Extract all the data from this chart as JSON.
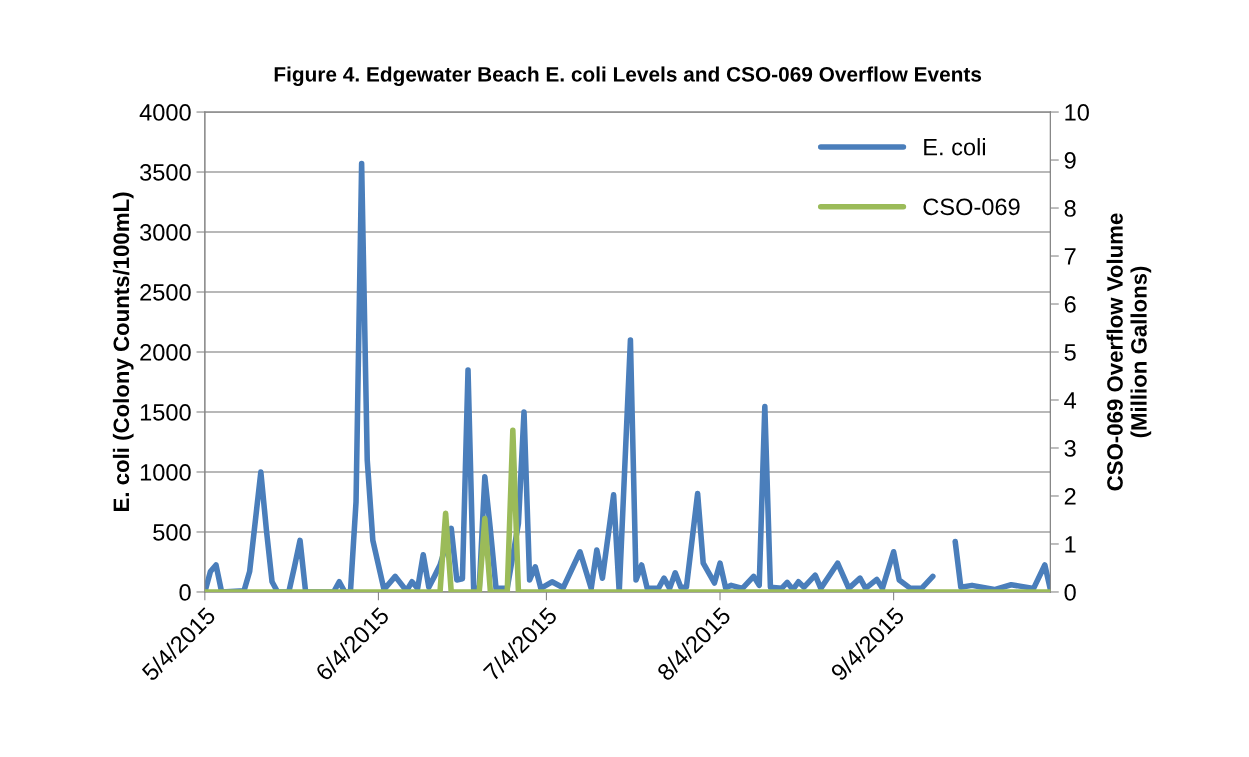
{
  "chart_data": {
    "type": "line",
    "title": "Figure 4. Edgewater Beach E. coli Levels and CSO-069 Overflow Events",
    "ylabel": "E. coli (Colony Counts/100mL)",
    "y2label": "CSO-069 Overflow Volume\n(Million Gallons)",
    "xlim": [
      "2015-05-04",
      "2015-10-02"
    ],
    "xticks": [
      {
        "value": "2015-05-04",
        "label": "5/4/2015"
      },
      {
        "value": "2015-06-04",
        "label": "6/4/2015"
      },
      {
        "value": "2015-07-04",
        "label": "7/4/2015"
      },
      {
        "value": "2015-08-04",
        "label": "8/4/2015"
      },
      {
        "value": "2015-09-04",
        "label": "9/4/2015"
      }
    ],
    "ylim": [
      0,
      4000
    ],
    "yticks": [
      0,
      500,
      1000,
      1500,
      2000,
      2500,
      3000,
      3500,
      4000
    ],
    "y2lim": [
      0,
      10
    ],
    "y2ticks": [
      0,
      1,
      2,
      3,
      4,
      5,
      6,
      7,
      8,
      9,
      10
    ],
    "grid": "y",
    "legend": "top right",
    "marker": "none",
    "line_style": "solid",
    "series": [
      {
        "name": "E. coli",
        "color": "#4a7ebb",
        "x": [
          "2015-05-04",
          "2015-05-05",
          "2015-05-06",
          "2015-05-07",
          "2015-05-11",
          "2015-05-12",
          "2015-05-14",
          "2015-05-15",
          "2015-05-16",
          "2015-05-17",
          "2015-05-19",
          "2015-05-20",
          "2015-05-21",
          "2015-05-22",
          "2015-05-25",
          "2015-05-27",
          "2015-05-28",
          "2015-05-29",
          "2015-05-30",
          "2015-05-31",
          "2015-06-01",
          "2015-06-02",
          "2015-06-03",
          "2015-06-05",
          "2015-06-07",
          "2015-06-09",
          "2015-06-10",
          "2015-06-11",
          "2015-06-12",
          "2015-06-13",
          "2015-06-14",
          "2015-06-15",
          "2015-06-17",
          "2015-06-18",
          "2015-06-19",
          "2015-06-20",
          "2015-06-21",
          "2015-06-22",
          "2015-06-23",
          "2015-06-24",
          "2015-06-25",
          "2015-06-27",
          "2015-06-29",
          "2015-06-30",
          "2015-07-01",
          "2015-07-02",
          "2015-07-03",
          "2015-07-05",
          "2015-07-07",
          "2015-07-10",
          "2015-07-12",
          "2015-07-13",
          "2015-07-14",
          "2015-07-16",
          "2015-07-17",
          "2015-07-19",
          "2015-07-20",
          "2015-07-21",
          "2015-07-22",
          "2015-07-24",
          "2015-07-25",
          "2015-07-26",
          "2015-07-27",
          "2015-07-28",
          "2015-07-29",
          "2015-07-31",
          "2015-08-01",
          "2015-08-03",
          "2015-08-04",
          "2015-08-05",
          "2015-08-06",
          "2015-08-08",
          "2015-08-10",
          "2015-08-11",
          "2015-08-12",
          "2015-08-13",
          "2015-08-15",
          "2015-08-16",
          "2015-08-17",
          "2015-08-18",
          "2015-08-19",
          "2015-08-21",
          "2015-08-22",
          "2015-08-25",
          "2015-08-27",
          "2015-08-29",
          "2015-08-30",
          "2015-09-01",
          "2015-09-02",
          "2015-09-04",
          "2015-09-05",
          "2015-09-07",
          "2015-09-09",
          "2015-09-11",
          "2015-09-13",
          "2015-09-15",
          "2015-09-16",
          "2015-09-18",
          "2015-09-22",
          "2015-09-25",
          "2015-09-29",
          "2015-10-01",
          "2015-10-02"
        ],
        "values": [
          0,
          170,
          225,
          0,
          10,
          170,
          1000,
          515,
          85,
          0,
          0,
          210,
          430,
          0,
          0,
          0,
          85,
          0,
          0,
          750,
          3570,
          1100,
          430,
          20,
          130,
          10,
          85,
          30,
          310,
          40,
          130,
          225,
          530,
          100,
          110,
          1850,
          30,
          30,
          960,
          515,
          30,
          30,
          570,
          1500,
          100,
          210,
          30,
          85,
          35,
          335,
          30,
          350,
          115,
          810,
          0,
          2100,
          100,
          225,
          30,
          30,
          115,
          30,
          160,
          40,
          40,
          820,
          240,
          75,
          240,
          35,
          55,
          30,
          130,
          55,
          1545,
          40,
          30,
          80,
          20,
          85,
          40,
          140,
          30,
          240,
          30,
          115,
          30,
          105,
          30,
          335,
          100,
          30,
          30,
          130,
          null,
          420,
          40,
          55,
          20,
          60,
          30,
          225,
          20
        ]
      },
      {
        "name": "CSO-069",
        "color": "#9bbb59",
        "axis": "y2",
        "x": [
          "2015-05-04",
          "2015-06-15",
          "2015-06-16",
          "2015-06-17",
          "2015-06-22",
          "2015-06-23",
          "2015-06-24",
          "2015-06-27",
          "2015-06-28",
          "2015-06-29",
          "2015-10-02"
        ],
        "values": [
          0,
          0,
          1.64,
          0,
          0,
          1.53,
          0,
          0,
          3.37,
          0,
          0
        ]
      }
    ]
  }
}
